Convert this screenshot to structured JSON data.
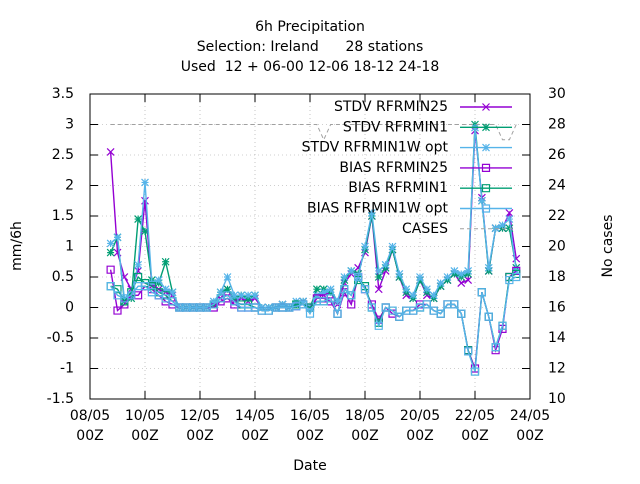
{
  "chart_data": {
    "type": "line",
    "title": "6h Precipitation",
    "subtitle": [
      "Selection: Ireland      28 stations",
      "Used  12 + 06-00 12-06 18-12 24-18"
    ],
    "xlabel": "Date",
    "ylabel": "mm/6h",
    "y2label": "No cases",
    "x": [
      8.75,
      9,
      9.25,
      9.5,
      9.75,
      10,
      10.25,
      10.5,
      10.75,
      11,
      11.25,
      11.5,
      11.75,
      12,
      12.25,
      12.5,
      12.75,
      13,
      13.25,
      13.5,
      13.75,
      14,
      14.25,
      14.5,
      14.75,
      15,
      15.25,
      15.5,
      15.75,
      16,
      16.25,
      16.5,
      16.75,
      17,
      17.25,
      17.5,
      17.75,
      18,
      18.25,
      18.5,
      18.75,
      19,
      19.25,
      19.5,
      19.75,
      20,
      20.25,
      20.5,
      20.75,
      21,
      21.25,
      21.5,
      21.75,
      22,
      22.25,
      22.5,
      22.75,
      23,
      23.25,
      23.5
    ],
    "xlim": [
      8,
      24
    ],
    "xticks": [
      {
        "value": 8,
        "label": [
          "08/05",
          "00Z"
        ]
      },
      {
        "value": 10,
        "label": [
          "10/05",
          "00Z"
        ]
      },
      {
        "value": 12,
        "label": [
          "12/05",
          "00Z"
        ]
      },
      {
        "value": 14,
        "label": [
          "14/05",
          "00Z"
        ]
      },
      {
        "value": 16,
        "label": [
          "16/05",
          "00Z"
        ]
      },
      {
        "value": 18,
        "label": [
          "18/05",
          "00Z"
        ]
      },
      {
        "value": 20,
        "label": [
          "20/05",
          "00Z"
        ]
      },
      {
        "value": 22,
        "label": [
          "22/05",
          "00Z"
        ]
      },
      {
        "value": 24,
        "label": [
          "24/05",
          "00Z"
        ]
      }
    ],
    "ylim": [
      -1.5,
      3.5
    ],
    "yticks": [
      -1.5,
      -1,
      -0.5,
      0,
      0.5,
      1,
      1.5,
      2,
      2.5,
      3,
      3.5
    ],
    "y2lim": [
      10,
      30
    ],
    "y2ticks": [
      10,
      12,
      14,
      16,
      18,
      20,
      22,
      24,
      26,
      28,
      30
    ],
    "grid": true,
    "legend": "top-right",
    "series": [
      {
        "name": "STDV RFRMIN25",
        "color": "#9400d3",
        "marker": "cross",
        "values": [
          2.55,
          0.9,
          0.5,
          0.3,
          0.6,
          1.75,
          0.35,
          0.3,
          0.25,
          0.2,
          0,
          0,
          0,
          0,
          0,
          0.05,
          0.15,
          0.3,
          0.1,
          0.15,
          0.1,
          0.15,
          0,
          0,
          0,
          0.05,
          0,
          0.05,
          0.1,
          0,
          0.2,
          0.2,
          0.25,
          0.05,
          0.4,
          0.55,
          0.65,
          0.9,
          1.5,
          0.3,
          0.6,
          0.95,
          0.5,
          0.2,
          0.15,
          0.45,
          0.2,
          0.15,
          0.35,
          0.45,
          0.55,
          0.4,
          0.45,
          2.9,
          1.8,
          0.6,
          1.3,
          1.3,
          1.55,
          0.8
        ]
      },
      {
        "name": "STDV RFRMIN1",
        "color": "#009e73",
        "marker": "star",
        "values": [
          0.9,
          1.15,
          0.1,
          0.15,
          1.45,
          1.25,
          0.45,
          0.4,
          0.75,
          0.25,
          0,
          0,
          0,
          0,
          0,
          0.05,
          0.25,
          0.3,
          0.15,
          0.2,
          0.15,
          0.2,
          0,
          0,
          0,
          0.05,
          0,
          0.05,
          0.1,
          0,
          0.3,
          0.3,
          0.25,
          0.1,
          0.45,
          0.6,
          0.55,
          0.95,
          1.5,
          0.5,
          0.65,
          0.95,
          0.5,
          0.25,
          0.15,
          0.45,
          0.25,
          0.15,
          0.35,
          0.45,
          0.55,
          0.5,
          0.55,
          3.0,
          1.75,
          0.6,
          1.3,
          1.3,
          1.3,
          0.65
        ]
      },
      {
        "name": "STDV RFRMIN1W opt",
        "color": "#56b4e9",
        "marker": "star",
        "values": [
          1.05,
          1.15,
          0.15,
          0.2,
          0.7,
          2.05,
          0.4,
          0.45,
          0.3,
          0.25,
          0,
          0,
          0,
          0,
          0,
          0.1,
          0.25,
          0.5,
          0.2,
          0.2,
          0.2,
          0.2,
          0,
          0,
          0,
          0.05,
          0,
          0.1,
          0.1,
          0,
          0.2,
          0.25,
          0.3,
          0.1,
          0.5,
          0.6,
          0.5,
          1,
          1.55,
          0.6,
          0.7,
          1,
          0.55,
          0.3,
          0.2,
          0.5,
          0.3,
          0.2,
          0.4,
          0.5,
          0.6,
          0.55,
          0.6,
          2.95,
          1.75,
          0.65,
          1.3,
          1.35,
          1.45,
          0.6
        ]
      },
      {
        "name": "BIAS RFRMIN25",
        "color": "#9400d3",
        "marker": "square",
        "values": [
          0.62,
          -0.05,
          0.05,
          0.2,
          0.2,
          0.35,
          0.3,
          0.2,
          0.1,
          0.05,
          0,
          0,
          0,
          0,
          0,
          0,
          0.1,
          0.15,
          0.05,
          0,
          0,
          0,
          -0.05,
          -0.05,
          0,
          0,
          0,
          0.02,
          0.05,
          0,
          0.15,
          0.15,
          0.1,
          -0.1,
          0.25,
          0.05,
          0.5,
          0.3,
          0.05,
          -0.2,
          0,
          -0.1,
          -0.15,
          -0.05,
          -0.05,
          0.05,
          0.05,
          -0.05,
          -0.1,
          0.05,
          0.05,
          -0.1,
          -0.7,
          -1.0,
          0.25,
          -0.15,
          -0.7,
          -0.35,
          0.5,
          0.6
        ]
      },
      {
        "name": "BIAS RFRMIN1",
        "color": "#009e73",
        "marker": "square",
        "values": [
          0.35,
          0.3,
          0.1,
          0.25,
          0.5,
          0.4,
          0.35,
          0.25,
          0.2,
          0.1,
          0,
          0,
          0,
          0,
          0,
          0.05,
          0.15,
          0.2,
          0.1,
          0.05,
          0.05,
          0,
          -0.05,
          -0.05,
          0,
          0,
          0,
          0.05,
          0.05,
          0,
          0.1,
          0.1,
          0.15,
          -0.1,
          0.3,
          0.2,
          0.45,
          0.35,
          0,
          -0.25,
          0,
          -0.05,
          -0.15,
          -0.05,
          -0.05,
          0,
          0.05,
          -0.05,
          -0.1,
          0.05,
          0.05,
          -0.1,
          -0.7,
          -1.05,
          0.25,
          -0.15,
          -0.65,
          -0.3,
          0.5,
          0.55
        ]
      },
      {
        "name": "BIAS RFRMIN1W opt",
        "color": "#56b4e9",
        "marker": "square",
        "values": [
          0.35,
          0.2,
          0.15,
          0.2,
          0.35,
          0.35,
          0.25,
          0.2,
          0.15,
          0.1,
          0,
          0,
          0,
          0,
          0,
          0.05,
          0.15,
          0.2,
          0.1,
          0,
          0,
          0,
          -0.05,
          -0.05,
          0,
          0,
          0,
          0.02,
          0.05,
          -0.1,
          0.1,
          0.1,
          0.15,
          -0.1,
          0.3,
          0.2,
          0.5,
          0.3,
          0,
          -0.3,
          0,
          -0.05,
          -0.15,
          -0.05,
          -0.05,
          0,
          0.05,
          -0.05,
          -0.1,
          0.05,
          0.05,
          -0.1,
          -0.72,
          -1.05,
          0.25,
          -0.15,
          -0.65,
          -0.3,
          0.45,
          0.5
        ]
      },
      {
        "name": "CASES",
        "color": "#a0a0a0",
        "axis": "y2",
        "dash": true,
        "values": [
          28,
          28,
          28,
          28,
          28,
          28,
          28,
          28,
          28,
          28,
          28,
          28,
          28,
          28,
          28,
          28,
          28,
          28,
          28,
          28,
          28,
          28,
          28,
          28,
          28,
          28,
          28,
          28,
          28,
          28,
          28,
          27,
          28,
          28,
          28,
          28,
          28,
          28,
          28,
          28,
          28,
          28,
          28,
          28,
          28,
          28,
          28,
          28,
          28,
          28,
          28,
          28,
          28,
          28,
          28,
          28,
          28,
          27,
          27,
          28
        ]
      }
    ]
  }
}
